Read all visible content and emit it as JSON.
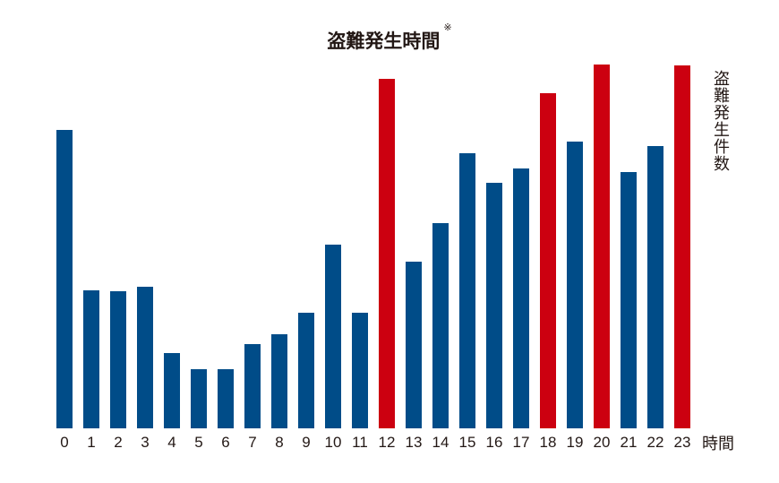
{
  "chart_data": {
    "type": "bar",
    "title": "盗難発生時間",
    "title_note": "※",
    "xlabel": "時間",
    "ylabel": "盗難発生件数",
    "categories": [
      "0",
      "1",
      "2",
      "3",
      "4",
      "5",
      "6",
      "7",
      "8",
      "9",
      "10",
      "11",
      "12",
      "13",
      "14",
      "15",
      "16",
      "17",
      "18",
      "19",
      "20",
      "21",
      "22",
      "23"
    ],
    "values": [
      333,
      154,
      153,
      158,
      84,
      66,
      66,
      94,
      105,
      129,
      205,
      129,
      390,
      186,
      229,
      307,
      274,
      290,
      374,
      320,
      406,
      286,
      315,
      405
    ],
    "highlight": [
      12,
      18,
      20,
      23
    ],
    "ylim": [
      0,
      410
    ],
    "grid": false,
    "colors": {
      "normal": "#004c88",
      "highlight": "#cc0010",
      "text": "#231815"
    }
  }
}
